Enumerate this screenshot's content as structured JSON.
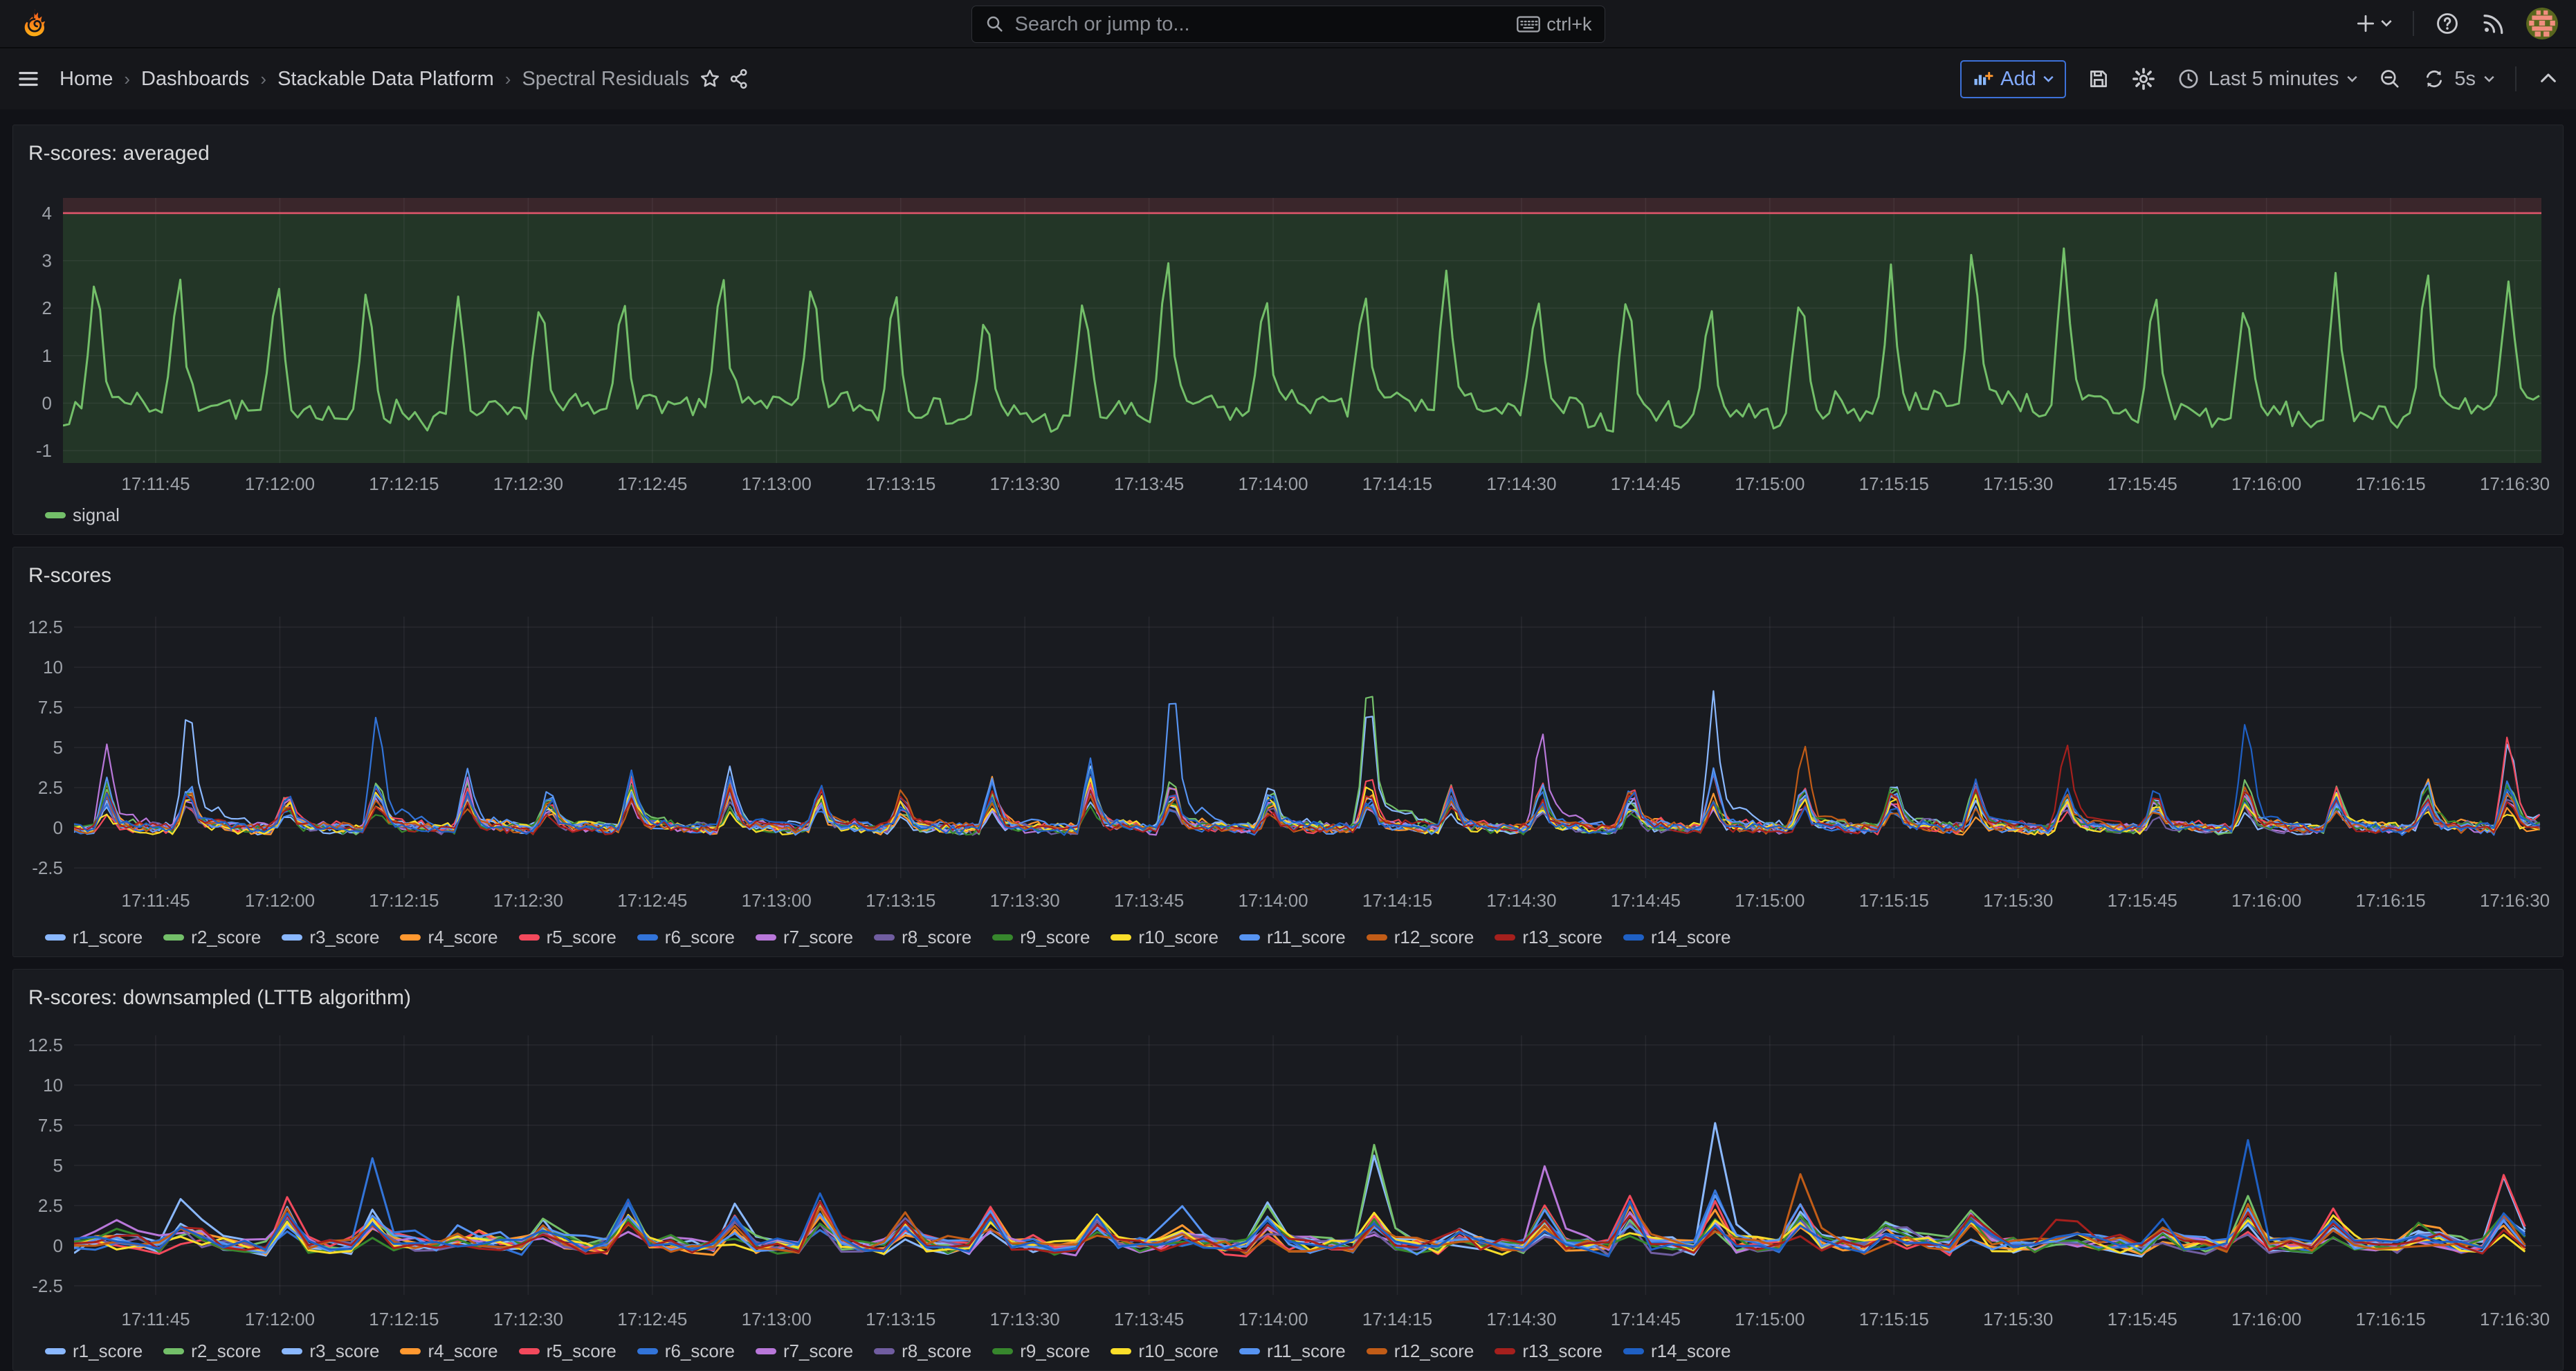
{
  "topbar": {
    "search": {
      "placeholder": "Search or jump to...",
      "shortcut": "ctrl+k"
    },
    "icons": [
      "grafana-logo",
      "search-icon",
      "keyboard-icon",
      "plus-icon",
      "caret-down-icon",
      "help-icon",
      "news-icon",
      "user-avatar"
    ]
  },
  "nav": {
    "breadcrumbs": [
      "Home",
      "Dashboards",
      "Stackable Data Platform",
      "Spectral Residuals"
    ],
    "actions": {
      "add_label": "Add",
      "time_range": "Last 5 minutes",
      "refresh_interval": "5s"
    },
    "icons": [
      "menu-icon",
      "star-icon",
      "share-icon",
      "panel-add-icon",
      "save-icon",
      "settings-icon",
      "clock-icon",
      "zoom-out-icon",
      "refresh-icon",
      "chevron-up-icon"
    ]
  },
  "colors": {
    "page_bg": "#111217",
    "surface_bg": "#16171B",
    "panel_bg": "#191B20",
    "panel_border": "#25272C",
    "accent_blue": "#3D71D9",
    "accent_blue_text": "#82AAFF",
    "text_primary": "#CCCCDC",
    "text_secondary": "#9DA1A8",
    "threshold_red": "#E0566B",
    "threshold_fill_above": "#3A262B",
    "threshold_fill_below": "#233627",
    "signal_green": "#73BF69",
    "grid_line": "rgba(205,210,220,0.08)"
  },
  "x_axis": {
    "ticks": [
      "17:11:45",
      "17:12:00",
      "17:12:15",
      "17:12:30",
      "17:12:45",
      "17:13:00",
      "17:13:15",
      "17:13:30",
      "17:13:45",
      "17:14:00",
      "17:14:15",
      "17:14:30",
      "17:14:45",
      "17:15:00",
      "17:15:15",
      "17:15:30",
      "17:15:45",
      "17:16:00",
      "17:16:15",
      "17:16:30"
    ]
  },
  "rscore_series": [
    {
      "name": "r1_score",
      "color": "#8AB8FF",
      "seed": 101,
      "mult": 1.05,
      "overrides": {
        "14": 8.7,
        "158": 9.0
      }
    },
    {
      "name": "r2_score",
      "color": "#73BF69",
      "seed": 102,
      "mult": 0.95,
      "overrides": {
        "158": 10.6
      }
    },
    {
      "name": "r3_score",
      "color": "#8AB8FF",
      "seed": 103,
      "mult": 0.9,
      "overrides": {
        "200": 8.5,
        "297": 6.2
      }
    },
    {
      "name": "r4_score",
      "color": "#FF9830",
      "seed": 104,
      "mult": 0.85
    },
    {
      "name": "r5_score",
      "color": "#F2495C",
      "seed": 105,
      "mult": 0.9,
      "overrides": {
        "297": 6.8
      }
    },
    {
      "name": "r6_score",
      "color": "#3274D9",
      "seed": 106,
      "mult": 1.0,
      "overrides": {
        "37": 8.0
      }
    },
    {
      "name": "r7_score",
      "color": "#B877D9",
      "seed": 107,
      "mult": 0.9,
      "overrides": {
        "4": 5.3,
        "179": 7.0
      }
    },
    {
      "name": "r8_score",
      "color": "#705DA0",
      "seed": 108,
      "mult": 0.8
    },
    {
      "name": "r9_score",
      "color": "#37872D",
      "seed": 109,
      "mult": 0.85
    },
    {
      "name": "r10_score",
      "color": "#FADE2A",
      "seed": 110,
      "mult": 0.75
    },
    {
      "name": "r11_score",
      "color": "#5794F2",
      "seed": 111,
      "mult": 1.0,
      "overrides": {
        "134": 10.0
      }
    },
    {
      "name": "r12_score",
      "color": "#C15C17",
      "seed": 112,
      "mult": 0.85,
      "overrides": {
        "211": 6.3
      }
    },
    {
      "name": "r13_score",
      "color": "#A5201D",
      "seed": 113,
      "mult": 0.8,
      "overrides": {
        "243": 6.0
      }
    },
    {
      "name": "r14_score",
      "color": "#1F60C4",
      "seed": 114,
      "mult": 0.95,
      "overrides": {
        "265": 7.8
      }
    }
  ],
  "rscore_events": [
    [
      4,
      2.6
    ],
    [
      14,
      3.0
    ],
    [
      26,
      2.4
    ],
    [
      37,
      3.0
    ],
    [
      48,
      2.8
    ],
    [
      58,
      2.6
    ],
    [
      68,
      3.2
    ],
    [
      80,
      2.7
    ],
    [
      91,
      3.0
    ],
    [
      101,
      2.5
    ],
    [
      112,
      2.8
    ],
    [
      124,
      3.4
    ],
    [
      134,
      3.2
    ],
    [
      146,
      2.6
    ],
    [
      158,
      3.6
    ],
    [
      168,
      2.5
    ],
    [
      179,
      2.8
    ],
    [
      190,
      2.6
    ],
    [
      200,
      3.0
    ],
    [
      211,
      2.7
    ],
    [
      222,
      2.9
    ],
    [
      232,
      2.6
    ],
    [
      243,
      2.8
    ],
    [
      254,
      2.5
    ],
    [
      265,
      2.9
    ],
    [
      276,
      2.6
    ],
    [
      287,
      3.1
    ],
    [
      297,
      3.0
    ]
  ],
  "panels": [
    {
      "title": "R-scores: averaged",
      "y_ticks": [
        "4",
        "3",
        "2",
        "1",
        "0",
        "-1"
      ],
      "legend": [
        {
          "label": "signal",
          "color": "#73BF69"
        }
      ],
      "chart_data": {
        "type": "line",
        "x_range": [
          "17:11:34",
          "17:16:35"
        ],
        "y_range": [
          -1.26,
          4.32
        ],
        "threshold": {
          "value": 4,
          "line_color": "#E0566B",
          "fill_above": "#3A262B",
          "fill_below": "#233627"
        },
        "events": [
          [
            4,
            3.2
          ],
          [
            14,
            3.0
          ],
          [
            26,
            2.95
          ],
          [
            37,
            3.05
          ],
          [
            48,
            2.6
          ],
          [
            58,
            3.0
          ],
          [
            68,
            2.9
          ],
          [
            80,
            3.1
          ],
          [
            91,
            2.85
          ],
          [
            101,
            3.0
          ],
          [
            112,
            2.5
          ],
          [
            124,
            3.0
          ],
          [
            134,
            3.7
          ],
          [
            146,
            2.9
          ],
          [
            158,
            2.8
          ],
          [
            168,
            3.0
          ],
          [
            179,
            2.9
          ],
          [
            190,
            3.1
          ],
          [
            200,
            2.8
          ],
          [
            211,
            2.9
          ],
          [
            222,
            3.0
          ],
          [
            232,
            3.85
          ],
          [
            243,
            3.3
          ],
          [
            254,
            2.9
          ],
          [
            265,
            3.0
          ],
          [
            276,
            2.9
          ],
          [
            287,
            3.3
          ],
          [
            297,
            2.7
          ]
        ],
        "series": [
          {
            "name": "signal",
            "color": "#73BF69",
            "seed": 7,
            "base": -0.32,
            "noise": 0.5,
            "exact": true
          }
        ]
      }
    },
    {
      "title": "R-scores",
      "y_ticks": [
        "12.5",
        "10",
        "7.5",
        "5",
        "2.5",
        "0",
        "-2.5"
      ],
      "chart_data": {
        "type": "line",
        "x_range": [
          "17:11:34",
          "17:16:35"
        ],
        "y_range": [
          -3.15,
          13.15
        ],
        "series_ref": "rscore_series",
        "events_ref": "rscore_events",
        "noise": 0.55
      }
    },
    {
      "title": "R-scores: downsampled (LTTB algorithm)",
      "y_ticks": [
        "12.5",
        "10",
        "7.5",
        "5",
        "2.5",
        "0",
        "-2.5"
      ],
      "chart_data": {
        "type": "line",
        "x_range": [
          "17:11:34",
          "17:16:35"
        ],
        "y_range": [
          -3.06,
          13.1
        ],
        "series_ref": "rscore_series",
        "events_ref": "rscore_events",
        "noise": 0.95,
        "downsampled": true
      }
    }
  ]
}
